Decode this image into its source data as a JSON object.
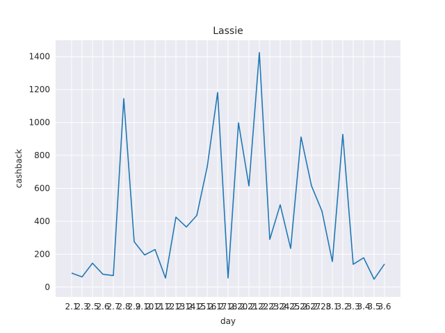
{
  "chart_data": {
    "type": "line",
    "title": "Lassie",
    "xlabel": "day",
    "ylabel": "cashback",
    "grid": true,
    "line_color": "#1f77b4",
    "background_color": "#eaeaf2",
    "grid_color": "#ffffff",
    "ylim": [
      -60,
      1500
    ],
    "yticks": [
      0,
      200,
      400,
      600,
      800,
      1000,
      1200,
      1400
    ],
    "categories": [
      "2.1",
      "2.3",
      "2.5",
      "2.6",
      "2.7",
      "2.8",
      "2.9",
      "2.10",
      "2.11",
      "2.12",
      "2.13",
      "2.14",
      "2.15",
      "2.16",
      "2.17",
      "2.18",
      "2.20",
      "2.21",
      "2.22",
      "2.23",
      "2.24",
      "2.25",
      "2.26",
      "2.27",
      "2.28",
      "3.1",
      "3.2",
      "3.3",
      "3.4",
      "3.5",
      "3.6"
    ],
    "values": [
      85,
      62,
      145,
      78,
      70,
      1145,
      275,
      195,
      228,
      55,
      425,
      365,
      435,
      730,
      1182,
      55,
      998,
      615,
      1425,
      290,
      500,
      235,
      912,
      615,
      462,
      155,
      928,
      138,
      178,
      48,
      140
    ]
  }
}
